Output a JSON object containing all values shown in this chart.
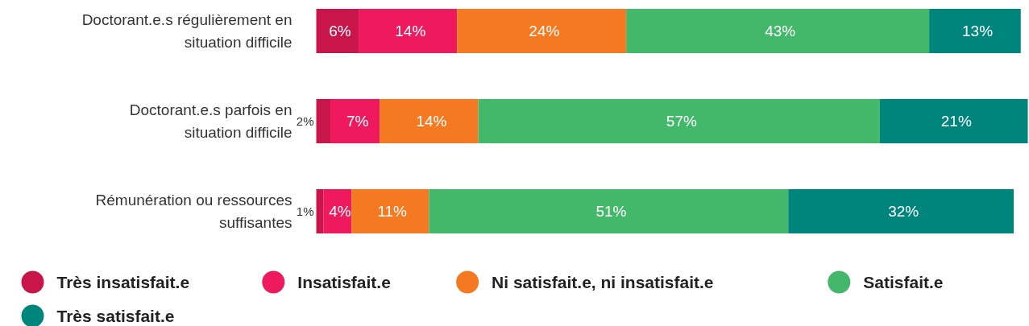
{
  "chart_data": {
    "type": "bar",
    "orientation": "horizontal",
    "stacked": true,
    "grid": false,
    "legend": "bottom",
    "marker": "circle",
    "tick_labels": "y",
    "categories": [
      "Doctorant.e.s régulièrement en situation difficile",
      "Doctorant.e.s parfois en situation difficile",
      "Rémunération ou ressources suffisantes"
    ],
    "series": [
      {
        "name": "Très insatisfait.e",
        "color": "#c8164b",
        "values": [
          6,
          2,
          1
        ],
        "value_labels": [
          "6%",
          "2%",
          "1%"
        ]
      },
      {
        "name": "Insatisfait.e",
        "color": "#ee1a5d",
        "values": [
          14,
          7,
          4
        ],
        "value_labels": [
          "14%",
          "7%",
          "4%"
        ]
      },
      {
        "name": "Ni satisfait.e, ni insatisfait.e",
        "color": "#f47920",
        "values": [
          24,
          14,
          11
        ],
        "value_labels": [
          "24%",
          "14%",
          "11%"
        ]
      },
      {
        "name": "Satisfait.e",
        "color": "#43b76a",
        "values": [
          43,
          57,
          51
        ],
        "value_labels": [
          "43%",
          "57%",
          "51%"
        ]
      },
      {
        "name": "Très satisfait.e",
        "color": "#00857c",
        "values": [
          13,
          21,
          32
        ],
        "value_labels": [
          "13%",
          "21%",
          "32%"
        ]
      }
    ]
  }
}
